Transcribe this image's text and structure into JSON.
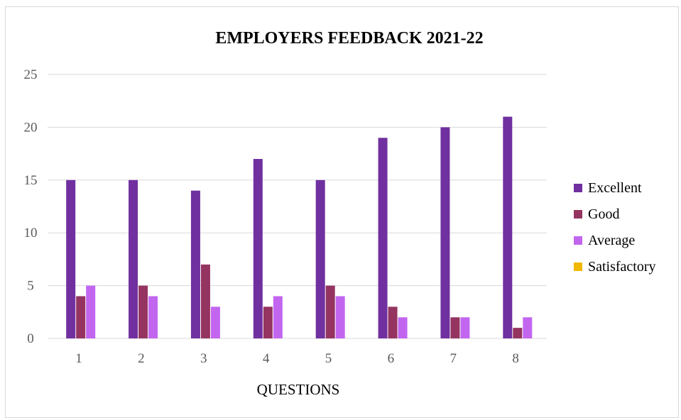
{
  "chart_data": {
    "type": "bar",
    "title": "EMPLOYERS FEEDBACK 2021-22",
    "xlabel": "QUESTIONS",
    "ylabel": "",
    "categories": [
      "1",
      "2",
      "3",
      "4",
      "5",
      "6",
      "7",
      "8"
    ],
    "ylim": [
      0,
      25
    ],
    "yticks": [
      0,
      5,
      10,
      15,
      20,
      25
    ],
    "grid": true,
    "legend_position": "right",
    "series": [
      {
        "name": "Excellent",
        "color": "#7030a0",
        "values": [
          15,
          15,
          14,
          17,
          15,
          19,
          20,
          21
        ]
      },
      {
        "name": "Good",
        "color": "#953460",
        "values": [
          4,
          5,
          7,
          3,
          5,
          3,
          2,
          1
        ]
      },
      {
        "name": "Average",
        "color": "#c266f0",
        "values": [
          5,
          4,
          3,
          4,
          4,
          2,
          2,
          2
        ]
      },
      {
        "name": "Satisfactory",
        "color": "#f0b800",
        "values": [
          0,
          0,
          0,
          0,
          0,
          0,
          0,
          0
        ]
      }
    ]
  }
}
